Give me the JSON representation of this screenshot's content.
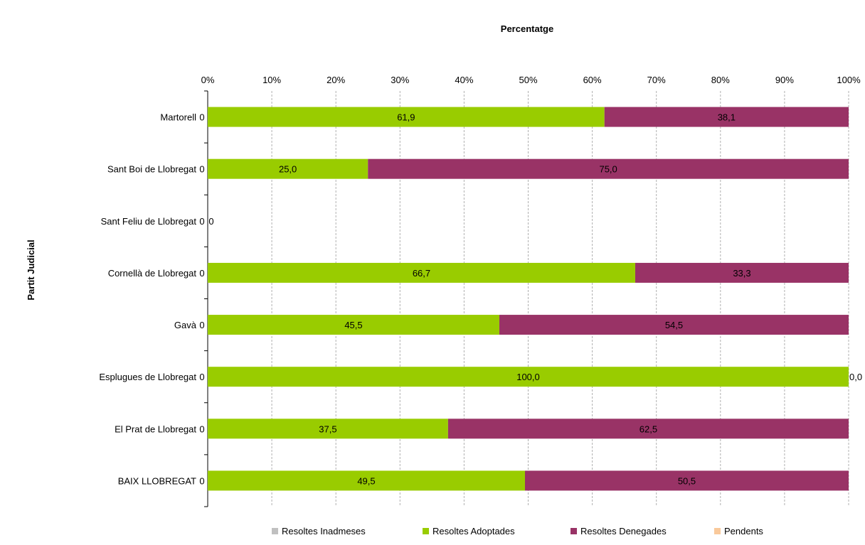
{
  "chart_data": {
    "type": "bar",
    "orientation": "horizontal",
    "stacked": "percent",
    "title": "Percentatge",
    "xlabel": "",
    "ylabel": "Partit Judicial",
    "xlim": [
      0,
      100
    ],
    "xticks": [
      "0%",
      "10%",
      "20%",
      "30%",
      "40%",
      "50%",
      "60%",
      "70%",
      "80%",
      "90%",
      "100%"
    ],
    "grid": true,
    "legend_position": "bottom",
    "categories": [
      "Martorell",
      "Sant Boi de Llobregat",
      "Sant Feliu de Llobregat",
      "Cornellà de Llobregat",
      "Gavà",
      "Esplugues de Llobregat",
      "El Prat de Llobregat",
      "BAIX LLOBREGAT"
    ],
    "series": [
      {
        "name": "Resoltes Inadmeses",
        "color": "#c0c0c0",
        "values": [
          0,
          0,
          0,
          0,
          0,
          0,
          0,
          0
        ],
        "labels": [
          "0",
          "0",
          "0",
          "0",
          "0",
          "0",
          "0",
          "0"
        ]
      },
      {
        "name": "Resoltes Adoptades",
        "color": "#99cc00",
        "values": [
          61.9,
          25.0,
          0,
          66.7,
          45.5,
          100.0,
          37.5,
          49.5
        ],
        "labels": [
          "61,9",
          "25,0",
          "0",
          "66,7",
          "45,5",
          "100,0",
          "37,5",
          "49,5"
        ]
      },
      {
        "name": "Resoltes Denegades",
        "color": "#993366",
        "values": [
          38.1,
          75.0,
          0,
          33.3,
          54.5,
          0.0,
          62.5,
          50.5
        ],
        "labels": [
          "38,1",
          "75,0",
          "",
          "33,3",
          "54,5",
          "0,0",
          "62,5",
          "50,5"
        ]
      },
      {
        "name": "Pendents",
        "color": "#f9c99b",
        "values": [
          0,
          0,
          0,
          0,
          0,
          0,
          0,
          0
        ],
        "labels": [
          "",
          "",
          "",
          "",
          "",
          "",
          "",
          ""
        ]
      }
    ]
  }
}
